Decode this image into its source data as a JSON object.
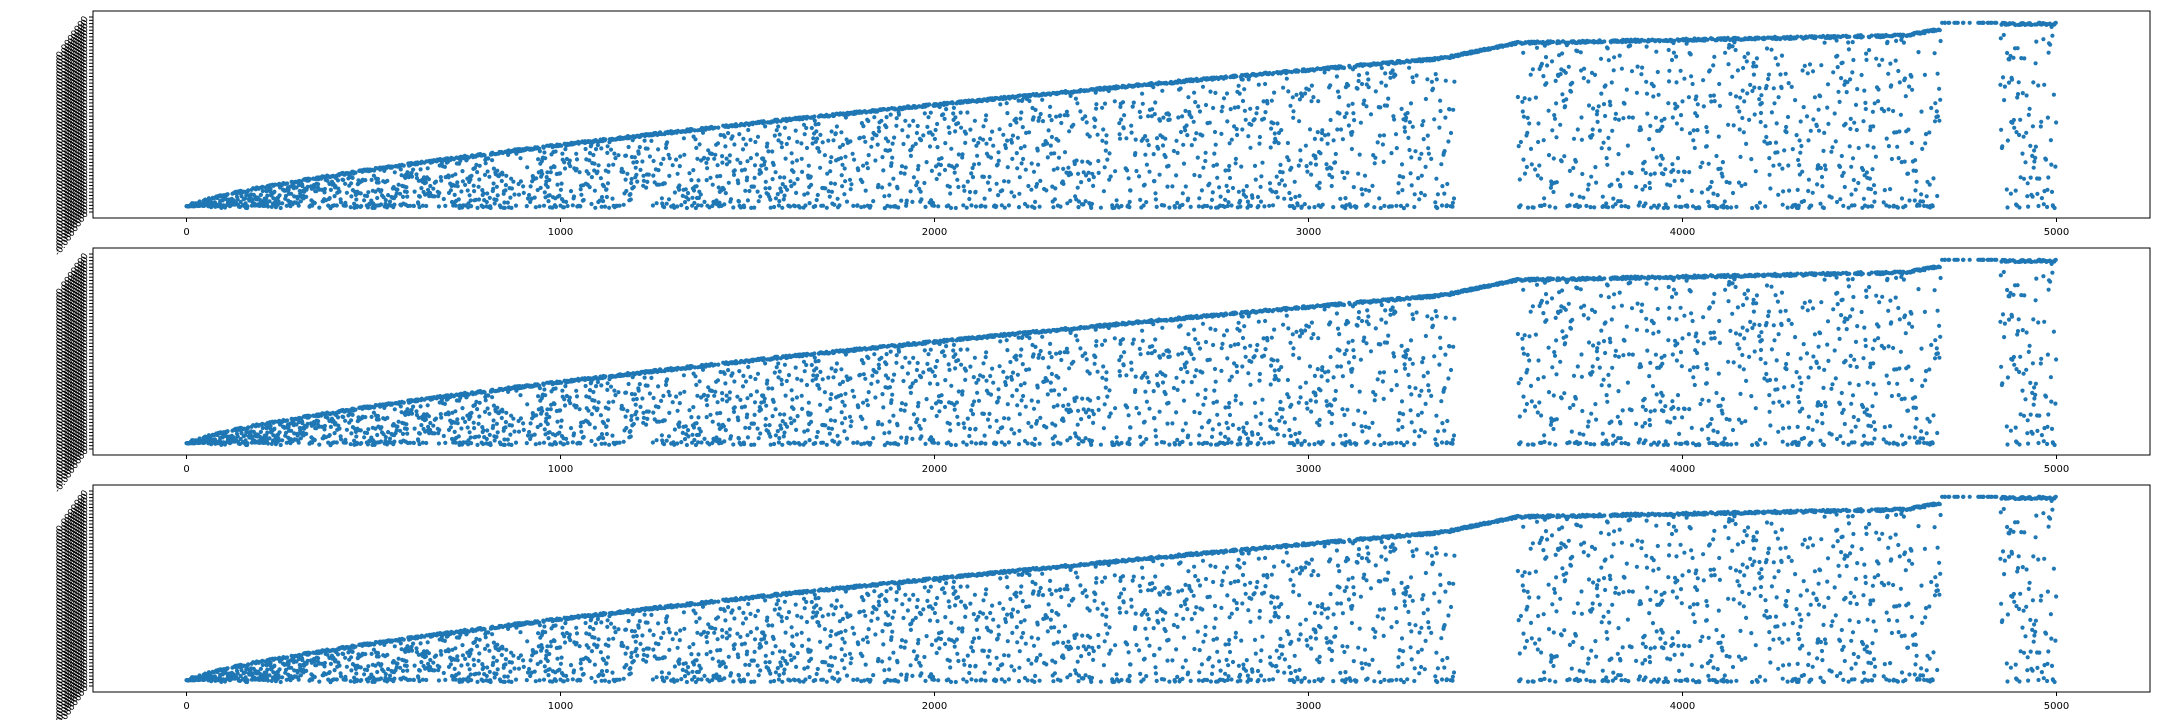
{
  "chart_data": [
    {
      "type": "scatter",
      "title": "",
      "xlabel": "",
      "ylabel": "",
      "xlim": [
        -250,
        5250
      ],
      "xticks": [
        0,
        1000,
        2000,
        3000,
        4000,
        5000
      ],
      "xtick_labels": [
        "0",
        "1000",
        "2000",
        "3000",
        "4000",
        "5000"
      ],
      "grid": false,
      "legend": "none",
      "series": [
        {
          "color": "#1f77b4",
          "n_points": 5000,
          "structure": "monotone increasing upper envelope with dense scatter below; gap around x=3400-3560 and x=4680-4850"
        }
      ]
    },
    {
      "type": "scatter",
      "title": "",
      "xlabel": "",
      "ylabel": "",
      "xlim": [
        -250,
        5250
      ],
      "xticks": [
        0,
        1000,
        2000,
        3000,
        4000,
        5000
      ],
      "xtick_labels": [
        "0",
        "1000",
        "2000",
        "3000",
        "4000",
        "5000"
      ],
      "grid": false,
      "legend": "none",
      "series": [
        {
          "color": "#1f77b4",
          "n_points": 5000,
          "structure": "monotone increasing upper envelope with dense scatter below; gap around x=3400-3560 and x=4680-4850"
        }
      ]
    },
    {
      "type": "scatter",
      "title": "",
      "xlabel": "",
      "ylabel": "",
      "xlim": [
        -250,
        5250
      ],
      "xticks": [
        0,
        1000,
        2000,
        3000,
        4000,
        5000
      ],
      "xtick_labels": [
        "0",
        "1000",
        "2000",
        "3000",
        "4000",
        "5000"
      ],
      "grid": false,
      "legend": "none",
      "series": [
        {
          "color": "#1f77b4",
          "n_points": 5000,
          "structure": "monotone increasing upper envelope with dense scatter below; gap around x=3400-3560 and x=4680-4850"
        }
      ]
    }
  ]
}
